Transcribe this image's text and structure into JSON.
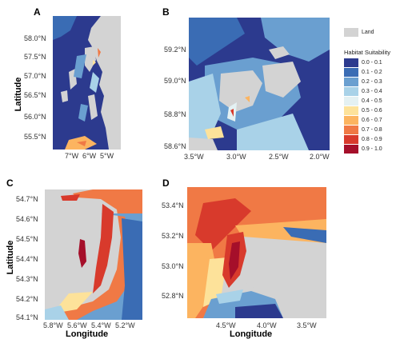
{
  "panels": {
    "a": {
      "letter": "A",
      "yticks": [
        "58.0°N",
        "57.5°N",
        "57.0°N",
        "56.5°N",
        "56.0°N",
        "55.5°N"
      ],
      "xticks": [
        "7°W",
        "6°W",
        "5°W"
      ]
    },
    "b": {
      "letter": "B",
      "yticks": [
        "59.2°N",
        "59.0°N",
        "58.8°N",
        "58.6°N"
      ],
      "xticks": [
        "3.5°W",
        "3.0°W",
        "2.5°W",
        "2.0°W"
      ]
    },
    "c": {
      "letter": "C",
      "yticks": [
        "54.7°N",
        "54.6°N",
        "54.5°N",
        "54.4°N",
        "54.3°N",
        "54.2°N",
        "54.1°N"
      ],
      "xticks": [
        "5.8°W",
        "5.6°W",
        "5.4°W",
        "5.2°W"
      ]
    },
    "d": {
      "letter": "D",
      "yticks": [
        "53.4°N",
        "53.2°N",
        "53.0°N",
        "52.8°N"
      ],
      "xticks": [
        "4.5°W",
        "4.0°W",
        "3.5°W"
      ]
    }
  },
  "axis_labels": {
    "latitude": "Latitude",
    "longitude": "Longitude"
  },
  "legend": {
    "land_label": "Land",
    "land_color": "#d3d3d3",
    "title": "Habitat Suitability",
    "items": [
      {
        "label": "0.0 - 0.1",
        "color": "#2c3a8e"
      },
      {
        "label": "0.1 - 0.2",
        "color": "#3a6cb4"
      },
      {
        "label": "0.2 - 0.3",
        "color": "#6a9fd0"
      },
      {
        "label": "0.3 - 0.4",
        "color": "#a9d2e8"
      },
      {
        "label": "0.4 - 0.5",
        "color": "#e4f1f3"
      },
      {
        "label": "0.5 - 0.6",
        "color": "#fde29a"
      },
      {
        "label": "0.6 - 0.7",
        "color": "#fcb460"
      },
      {
        "label": "0.7 - 0.8",
        "color": "#f07945"
      },
      {
        "label": "0.8 - 0.9",
        "color": "#d83a2c"
      },
      {
        "label": "0.9 - 1.0",
        "color": "#a50f2a"
      }
    ]
  }
}
